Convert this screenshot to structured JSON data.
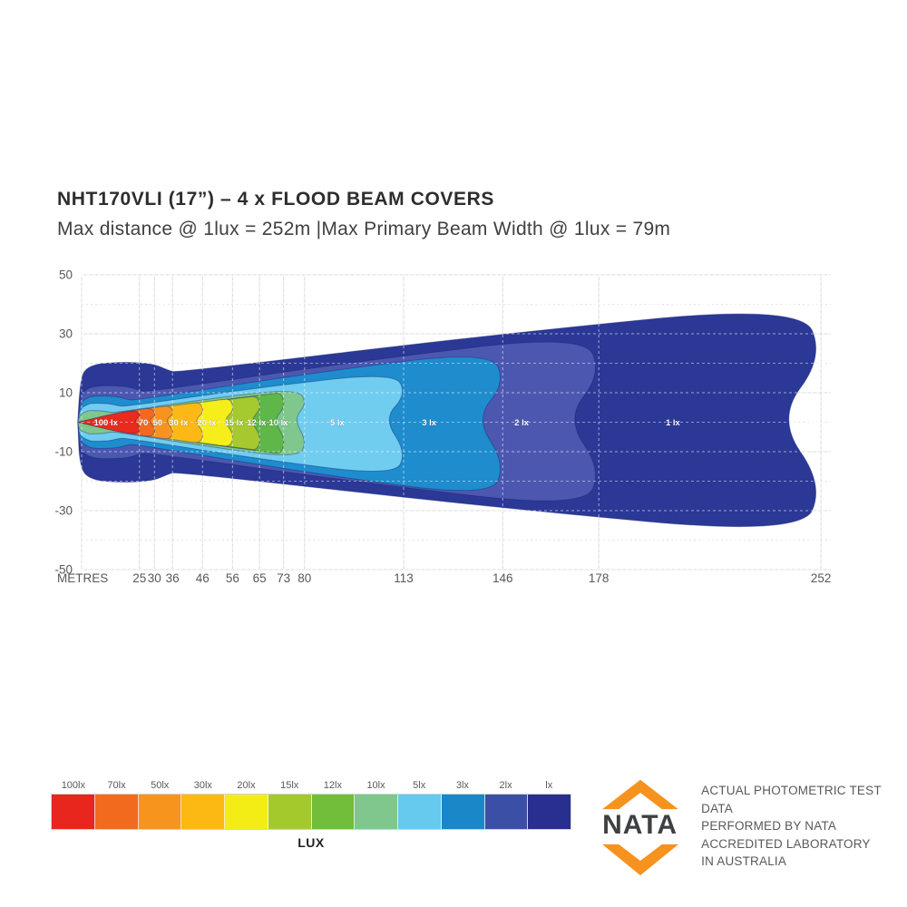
{
  "header": {
    "title": "NHT170VLI (17”) – 4 x FLOOD BEAM COVERS",
    "subtitle": "Max distance @ 1lux = 252m |Max Primary  Beam Width @ 1lux = 79m"
  },
  "chart_data": {
    "type": "area",
    "description": "Isolux beam-pattern contour plot: horizontal distance vs lateral beam width for each illuminance level",
    "x_unit_label": "METRES",
    "x_ticks": [
      25,
      30,
      36,
      46,
      56,
      65,
      73,
      80,
      113,
      146,
      178,
      252
    ],
    "y_ticks": [
      50,
      30,
      10,
      -10,
      -30,
      -50
    ],
    "y_minor_grid": [
      40,
      20,
      0,
      -20,
      -40
    ],
    "xlim": [
      0,
      260
    ],
    "ylim": [
      -50,
      50
    ],
    "max_distance_at_1lux_m": 252,
    "max_primary_beam_width_at_1lux_m": 79,
    "grid": true,
    "contours": [
      {
        "label": "1 lx",
        "lux": 1,
        "max_distance_m": 252,
        "half_width_top_m": 40.0,
        "half_width_bottom_m": 38.5,
        "head_half_width_m": 20.5,
        "notch_m": 14.5,
        "color": "#2b3896",
        "label_x_m": 202.7
      },
      {
        "label": "2 lx",
        "lux": 2,
        "max_distance_m": 178,
        "half_width_top_m": 29.8,
        "half_width_bottom_m": 29.2,
        "head_half_width_m": 12.5,
        "notch_m": 10.9,
        "color": "#4c58b0",
        "label_x_m": 152.3
      },
      {
        "label": "3 lx",
        "lux": 3,
        "max_distance_m": 146,
        "half_width_top_m": 24.3,
        "half_width_bottom_m": 25.5,
        "head_half_width_m": 9.0,
        "notch_m": 9.0,
        "color": "#1e8ccd",
        "label_x_m": 121.5
      },
      {
        "label": "5 lx",
        "lux": 5,
        "max_distance_m": 113,
        "half_width_top_m": 17.0,
        "half_width_bottom_m": 18.3,
        "head_half_width_m": 6.5,
        "notch_m": 6.6,
        "color": "#70cdf0",
        "label_x_m": 90.9
      },
      {
        "label": "10 lx",
        "lux": 10,
        "max_distance_m": 80,
        "half_width_top_m": 11.5,
        "half_width_bottom_m": 12.2,
        "head_half_width_m": 4.0,
        "notch_m": 3.6,
        "color": "#7fc78c",
        "label_x_m": 71.3
      },
      {
        "label": "12 lx",
        "lux": 12,
        "max_distance_m": 73,
        "half_width_top_m": 10.0,
        "half_width_bottom_m": 10.7,
        "head_half_width_m": 0,
        "notch_m": 3.3,
        "color": "#5eb748",
        "label_x_m": 64.0
      },
      {
        "label": "15 lx",
        "lux": 15,
        "max_distance_m": 65,
        "half_width_top_m": 8.8,
        "half_width_bottom_m": 9.4,
        "head_half_width_m": 0,
        "notch_m": 3.0,
        "color": "#a5c92e",
        "label_x_m": 56.5
      },
      {
        "label": "20 lx",
        "lux": 20,
        "max_distance_m": 56,
        "half_width_top_m": 7.9,
        "half_width_bottom_m": 8.2,
        "head_half_width_m": 0,
        "notch_m": 3.0,
        "color": "#f5ee1a",
        "label_x_m": 47.4
      },
      {
        "label": "30 lx",
        "lux": 30,
        "max_distance_m": 46,
        "half_width_top_m": 6.7,
        "half_width_bottom_m": 7.0,
        "head_half_width_m": 0,
        "notch_m": 2.7,
        "color": "#fcb915",
        "label_x_m": 38.0
      },
      {
        "label": "50",
        "lux": 50,
        "max_distance_m": 36,
        "half_width_top_m": 5.5,
        "half_width_bottom_m": 5.7,
        "head_half_width_m": 0,
        "notch_m": 2.4,
        "color": "#f79420",
        "label_x_m": 31.1
      },
      {
        "label": "70",
        "lux": 70,
        "max_distance_m": 30,
        "half_width_top_m": 4.7,
        "half_width_bottom_m": 4.8,
        "head_half_width_m": 0,
        "notch_m": 2.0,
        "color": "#f2691e",
        "label_x_m": 26.3
      },
      {
        "label": "100 lx",
        "lux": 100,
        "max_distance_m": 25,
        "half_width_top_m": 3.9,
        "half_width_bottom_m": 3.9,
        "head_half_width_m": 0,
        "notch_m": 1.8,
        "color": "#e92a1e",
        "label_x_m": 13.8
      }
    ]
  },
  "legend": {
    "caption": "LUX",
    "items": [
      {
        "label": "100lx",
        "color": "#e8261d"
      },
      {
        "label": "70lx",
        "color": "#f26a1d"
      },
      {
        "label": "50lx",
        "color": "#f7941e"
      },
      {
        "label": "30lx",
        "color": "#fcb913"
      },
      {
        "label": "20lx",
        "color": "#f3ec15"
      },
      {
        "label": "15lx",
        "color": "#a4c92d"
      },
      {
        "label": "12lx",
        "color": "#72bd39"
      },
      {
        "label": "10lx",
        "color": "#7fc78c"
      },
      {
        "label": "5lx",
        "color": "#66c9ee"
      },
      {
        "label": "3lx",
        "color": "#1a87c8"
      },
      {
        "label": "2lx",
        "color": "#3b4fa7"
      },
      {
        "label": "lx",
        "color": "#282f8e"
      }
    ]
  },
  "nata": {
    "wordmark": "NATA",
    "logo_color": "#f6921e",
    "lines": [
      "ACTUAL PHOTOMETRIC TEST DATA",
      "PERFORMED BY NATA",
      "ACCREDITED LABORATORY",
      "IN AUSTRALIA"
    ]
  }
}
